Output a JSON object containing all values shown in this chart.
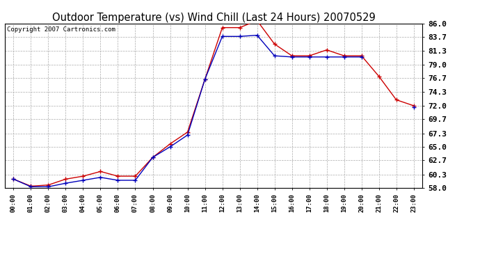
{
  "title": "Outdoor Temperature (vs) Wind Chill (Last 24 Hours) 20070529",
  "copyright": "Copyright 2007 Cartronics.com",
  "hours": [
    "00:00",
    "01:00",
    "02:00",
    "03:00",
    "04:00",
    "05:00",
    "06:00",
    "07:00",
    "08:00",
    "09:00",
    "10:00",
    "11:00",
    "12:00",
    "13:00",
    "14:00",
    "15:00",
    "16:00",
    "17:00",
    "18:00",
    "19:00",
    "20:00",
    "21:00",
    "22:00",
    "23:00"
  ],
  "outdoor_temp": [
    59.5,
    58.3,
    58.5,
    59.5,
    60.0,
    60.8,
    60.0,
    60.0,
    63.2,
    65.5,
    67.5,
    76.5,
    85.3,
    85.3,
    86.5,
    82.5,
    80.5,
    80.5,
    81.5,
    80.5,
    80.5,
    77.0,
    73.0,
    72.0
  ],
  "wind_chill": [
    59.5,
    58.2,
    58.2,
    58.8,
    59.3,
    59.8,
    59.3,
    59.3,
    63.2,
    65.0,
    67.0,
    76.5,
    83.8,
    83.8,
    84.0,
    80.5,
    80.3,
    80.3,
    80.3,
    80.3,
    80.3,
    null,
    null,
    71.8
  ],
  "ylim_min": 58.0,
  "ylim_max": 86.0,
  "yticks": [
    58.0,
    60.3,
    62.7,
    65.0,
    67.3,
    69.7,
    72.0,
    74.3,
    76.7,
    79.0,
    81.3,
    83.7,
    86.0
  ],
  "temp_color": "#cc0000",
  "windchill_color": "#0000bb",
  "grid_color": "#aaaaaa",
  "background_color": "#ffffff",
  "plot_bg_color": "#ffffff",
  "title_fontsize": 10.5,
  "copyright_fontsize": 6.5,
  "ytick_fontsize": 8,
  "xtick_fontsize": 6.5
}
